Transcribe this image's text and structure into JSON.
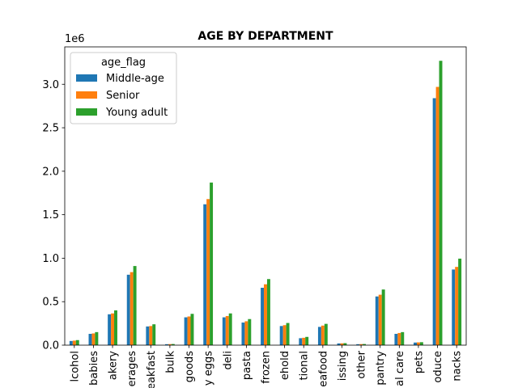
{
  "chart_data": {
    "type": "bar",
    "title": "AGE BY DEPARTMENT",
    "xlabel": "",
    "ylabel": "",
    "y_offset_label": "1e6",
    "ylim": [
      0,
      3.43
    ],
    "yticks": [
      0.0,
      0.5,
      1.0,
      1.5,
      2.0,
      2.5,
      3.0
    ],
    "ytick_labels": [
      "0.0",
      "0.5",
      "1.0",
      "1.5",
      "2.0",
      "2.5",
      "3.0"
    ],
    "categories": [
      "alcohol",
      "babies",
      "bakery",
      "beverages",
      "breakfast",
      "bulk",
      "canned goods",
      "dairy eggs",
      "deli",
      "dry goods pasta",
      "frozen",
      "household",
      "international",
      "meat seafood",
      "missing",
      "other",
      "pantry",
      "personal care",
      "pets",
      "produce",
      "snacks"
    ],
    "category_labels_visible": [
      "lcohol",
      "babies",
      "akery",
      "erages",
      "eakfast",
      "bulk",
      "goods",
      "y eggs",
      "deli",
      "pasta",
      "frozen",
      "ehold",
      "tional",
      "eafood",
      "issing",
      "other",
      "pantry",
      "al care",
      "pets",
      "oduce",
      "nacks"
    ],
    "legend": {
      "title": "age_flag",
      "position": "upper-left"
    },
    "grid": false,
    "series": [
      {
        "name": "Middle-age",
        "color": "#1f77b4",
        "values": [
          0.048,
          0.13,
          0.355,
          0.81,
          0.215,
          0.011,
          0.32,
          1.62,
          0.32,
          0.26,
          0.66,
          0.22,
          0.08,
          0.21,
          0.02,
          0.011,
          0.56,
          0.13,
          0.03,
          2.84,
          0.87
        ]
      },
      {
        "name": "Senior",
        "color": "#ff7f0e",
        "values": [
          0.052,
          0.135,
          0.365,
          0.84,
          0.22,
          0.012,
          0.33,
          1.68,
          0.335,
          0.275,
          0.7,
          0.23,
          0.085,
          0.225,
          0.021,
          0.012,
          0.58,
          0.14,
          0.032,
          2.97,
          0.9
        ]
      },
      {
        "name": "Young adult",
        "color": "#2ca02c",
        "values": [
          0.058,
          0.15,
          0.4,
          0.91,
          0.24,
          0.013,
          0.36,
          1.87,
          0.365,
          0.3,
          0.76,
          0.255,
          0.095,
          0.245,
          0.023,
          0.013,
          0.64,
          0.15,
          0.034,
          3.27,
          0.995
        ]
      }
    ]
  }
}
